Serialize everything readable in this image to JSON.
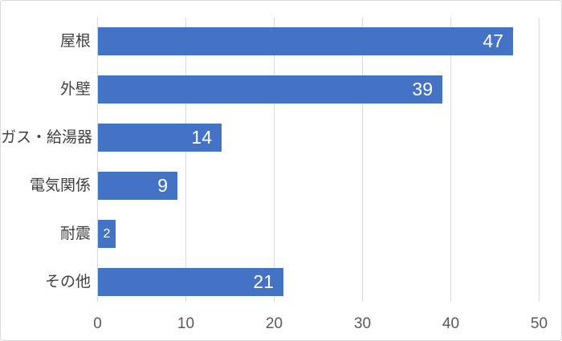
{
  "chart_data": {
    "type": "bar",
    "orientation": "horizontal",
    "title": "",
    "xlabel": "",
    "ylabel": "",
    "categories": [
      "屋根",
      "外壁",
      "ガス・給湯器",
      "電気関係",
      "耐震",
      "その他"
    ],
    "values": [
      47,
      39,
      14,
      9,
      2,
      21
    ],
    "data_labels": [
      47,
      39,
      14,
      9,
      2,
      21
    ],
    "data_label_position": "inside-end",
    "xlim": [
      0,
      50
    ],
    "xticks": [
      0,
      10,
      20,
      30,
      40,
      50
    ],
    "grid": true,
    "legend": false,
    "colors": {
      "bar": "#4472C4",
      "data_label_text": "#FFFFFF",
      "gridline": "#D9D9D9",
      "axis_tick_text": "#595959",
      "category_text": "#404040",
      "chart_border": "#D9D9D9",
      "background": "#FFFFFF"
    }
  }
}
